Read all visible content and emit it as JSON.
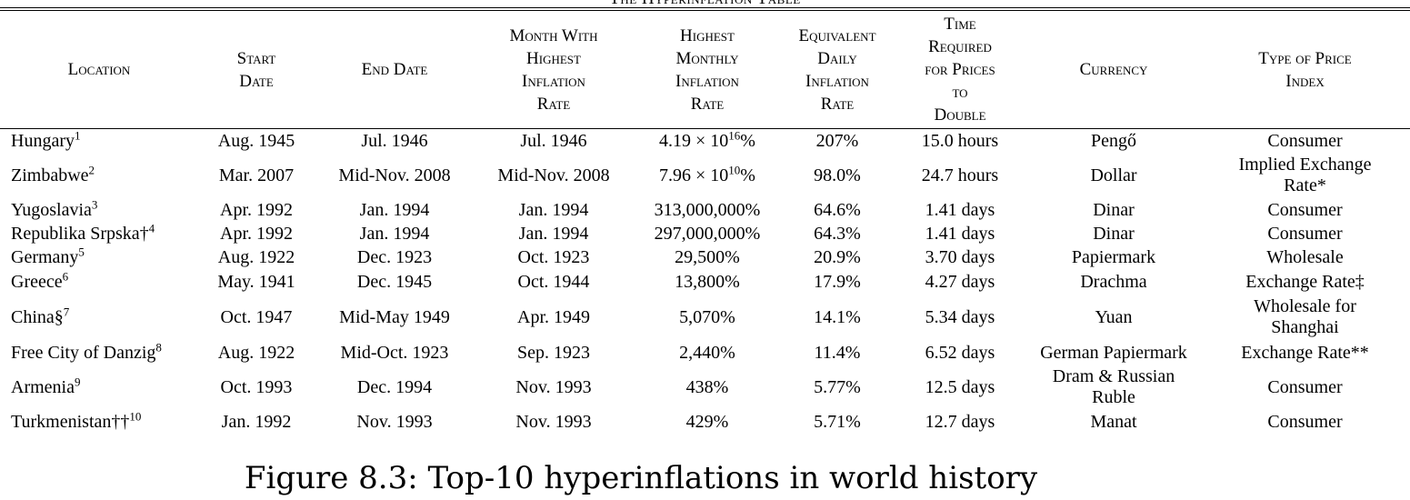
{
  "table_title": "The Hyperinflation Table",
  "headers": {
    "location": "Location",
    "start_date": [
      "Start",
      "Date"
    ],
    "end_date": "End Date",
    "month_highest": [
      "Month With",
      "Highest",
      "Inflation",
      "Rate"
    ],
    "highest_monthly": [
      "Highest",
      "Monthly",
      "Inflation",
      "Rate"
    ],
    "equivalent_daily": [
      "Equivalent",
      "Daily",
      "Inflation",
      "Rate"
    ],
    "time_required": [
      "Time",
      "Required",
      "for Prices",
      "to",
      "Double"
    ],
    "currency": "Currency",
    "price_index": [
      "Type of Price",
      "Index"
    ]
  },
  "rows": [
    {
      "location": "Hungary",
      "sup": "1",
      "start": "Aug. 1945",
      "end": "Jul. 1946",
      "month": "Jul. 1946",
      "rate_base": "4.19 × 10",
      "rate_exp": "16",
      "rate_tail": "%",
      "daily": "207%",
      "time": "15.0 hours",
      "currency": "Pengő",
      "index": "Consumer"
    },
    {
      "location": "Zimbabwe",
      "sup": "2",
      "start": "Mar. 2007",
      "end": "Mid-Nov. 2008",
      "month": "Mid-Nov. 2008",
      "rate_base": "7.96 × 10",
      "rate_exp": "10",
      "rate_tail": "%",
      "daily": "98.0%",
      "time": "24.7 hours",
      "currency": "Dollar",
      "index": "Implied Exchange Rate*"
    },
    {
      "location": "Yugoslavia",
      "sup": "3",
      "start": "Apr. 1992",
      "end": "Jan. 1994",
      "month": "Jan. 1994",
      "rate_base": "313,000,000%",
      "rate_exp": "",
      "rate_tail": "",
      "daily": "64.6%",
      "time": "1.41 days",
      "currency": "Dinar",
      "index": "Consumer"
    },
    {
      "location": "Republika Srpska†",
      "sup": "4",
      "start": "Apr. 1992",
      "end": "Jan. 1994",
      "month": "Jan. 1994",
      "rate_base": "297,000,000%",
      "rate_exp": "",
      "rate_tail": "",
      "daily": "64.3%",
      "time": "1.41 days",
      "currency": "Dinar",
      "index": "Consumer"
    },
    {
      "location": "Germany",
      "sup": "5",
      "start": "Aug. 1922",
      "end": "Dec. 1923",
      "month": "Oct. 1923",
      "rate_base": "29,500%",
      "rate_exp": "",
      "rate_tail": "",
      "daily": "20.9%",
      "time": "3.70 days",
      "currency": "Papiermark",
      "index": "Wholesale"
    },
    {
      "location": "Greece",
      "sup": "6",
      "start": "May. 1941",
      "end": "Dec. 1945",
      "month": "Oct. 1944",
      "rate_base": "13,800%",
      "rate_exp": "",
      "rate_tail": "",
      "daily": "17.9%",
      "time": "4.27 days",
      "currency": "Drachma",
      "index": "Exchange Rate‡"
    },
    {
      "location": "China§",
      "sup": "7",
      "start": "Oct. 1947",
      "end": "Mid-May 1949",
      "month": "Apr. 1949",
      "rate_base": "5,070%",
      "rate_exp": "",
      "rate_tail": "",
      "daily": "14.1%",
      "time": "5.34 days",
      "currency": "Yuan",
      "index": "Wholesale for Shanghai"
    },
    {
      "location": "Free City of Danzig",
      "sup": "8",
      "start": "Aug. 1922",
      "end": "Mid-Oct. 1923",
      "month": "Sep. 1923",
      "rate_base": "2,440%",
      "rate_exp": "",
      "rate_tail": "",
      "daily": "11.4%",
      "time": "6.52 days",
      "currency": "German Papiermark",
      "index": "Exchange Rate**"
    },
    {
      "location": "Armenia",
      "sup": "9",
      "start": "Oct. 1993",
      "end": "Dec. 1994",
      "month": "Nov. 1993",
      "rate_base": "438%",
      "rate_exp": "",
      "rate_tail": "",
      "daily": "5.77%",
      "time": "12.5 days",
      "currency": "Dram & Russian Ruble",
      "index": "Consumer"
    },
    {
      "location": "Turkmenistan††",
      "sup": "10",
      "start": "Jan. 1992",
      "end": "Nov. 1993",
      "month": "Nov. 1993",
      "rate_base": "429%",
      "rate_exp": "",
      "rate_tail": "",
      "daily": "5.71%",
      "time": "12.7 days",
      "currency": "Manat",
      "index": "Consumer"
    }
  ],
  "caption": "Figure 8.3: Top-10 hyperinflations in world history"
}
